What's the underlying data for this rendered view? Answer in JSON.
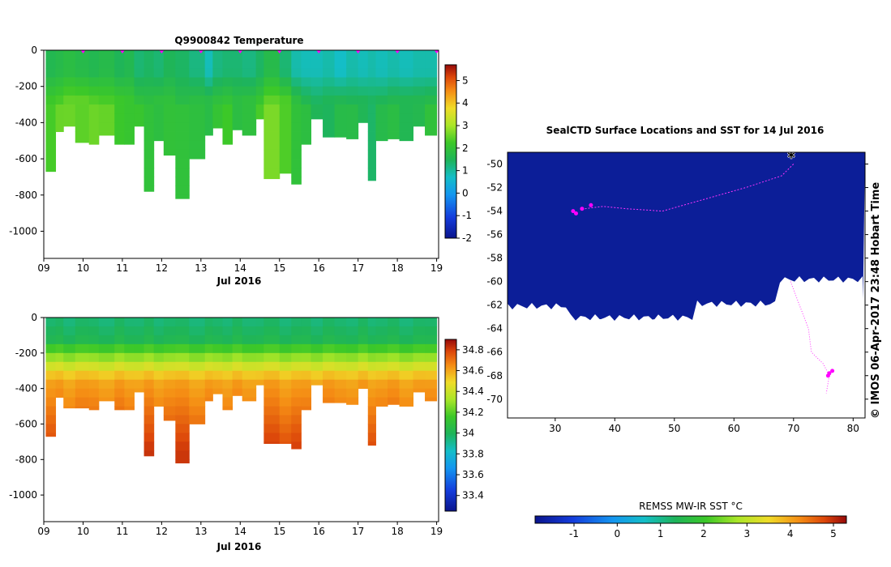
{
  "credit": "© IMOS 06-Apr-2017 23:48 Hobart Time",
  "chart_data": [
    {
      "type": "heatmap",
      "title": "Q9900842  Temperature",
      "xlabel": "Jul 2016",
      "ylabel": "",
      "x_ticks": [
        "09",
        "10",
        "11",
        "12",
        "13",
        "14",
        "15",
        "16",
        "17",
        "18",
        "19"
      ],
      "y_ticks": [
        "0",
        "-200",
        "-400",
        "-600",
        "-800",
        "-1000"
      ],
      "ylim": [
        -1150,
        0
      ],
      "xlim": [
        9.0,
        19.05
      ],
      "colorbar": {
        "min": -2,
        "max": 5.7,
        "ticks": [
          "-2",
          "-1",
          "0",
          "1",
          "2",
          "3",
          "4",
          "5"
        ]
      },
      "profile_markers_x": [
        10,
        11,
        12,
        13,
        14,
        15,
        16,
        17,
        18,
        19
      ],
      "profiles": {
        "x_start": [
          9.05,
          9.3,
          9.5,
          9.8,
          10.15,
          10.4,
          10.8,
          11.05,
          11.3,
          11.55,
          11.8,
          12.05,
          12.35,
          12.7,
          13.1,
          13.3,
          13.55,
          13.8,
          14.05,
          14.4,
          14.6,
          15.0,
          15.3,
          15.55,
          15.8,
          16.1,
          16.4,
          16.7,
          17.0,
          17.25,
          17.45,
          17.75,
          18.05,
          18.4,
          18.7
        ],
        "max_depth": [
          670,
          450,
          420,
          510,
          520,
          470,
          520,
          520,
          420,
          780,
          500,
          580,
          820,
          600,
          470,
          430,
          520,
          440,
          470,
          380,
          710,
          680,
          740,
          520,
          380,
          480,
          480,
          490,
          400,
          720,
          500,
          490,
          500,
          420,
          470
        ],
        "surface_temp": [
          1.6,
          1.7,
          1.8,
          1.7,
          1.6,
          1.7,
          1.5,
          1.6,
          1.3,
          1.4,
          1.3,
          1.5,
          1.4,
          1.2,
          0.8,
          1.2,
          1.3,
          1.3,
          1.2,
          1.4,
          1.7,
          1.3,
          0.9,
          0.8,
          0.8,
          0.9,
          0.7,
          0.9,
          0.8,
          0.9,
          0.8,
          0.9,
          0.8,
          0.9,
          0.9
        ],
        "deep_temp": [
          2.3,
          2.4,
          2.6,
          2.6,
          2.5,
          2.4,
          2.3,
          2.2,
          2.0,
          1.9,
          2.0,
          2.0,
          1.8,
          1.9,
          1.9,
          2.0,
          2.1,
          1.9,
          2.0,
          2.2,
          2.6,
          2.5,
          2.0,
          1.7,
          1.5,
          1.6,
          1.7,
          1.6,
          1.6,
          1.5,
          1.6,
          1.7,
          1.7,
          1.7,
          1.8
        ]
      }
    },
    {
      "type": "heatmap",
      "title": "",
      "xlabel": "Jul 2016",
      "ylabel": "",
      "x_ticks": [
        "09",
        "10",
        "11",
        "12",
        "13",
        "14",
        "15",
        "16",
        "17",
        "18",
        "19"
      ],
      "y_ticks": [
        "0",
        "-200",
        "-400",
        "-600",
        "-800",
        "-1000"
      ],
      "ylim": [
        -1150,
        0
      ],
      "xlim": [
        9.0,
        19.05
      ],
      "colorbar": {
        "min": 33.25,
        "max": 34.9,
        "ticks": [
          "33.4",
          "33.6",
          "33.8",
          "34",
          "34.2",
          "34.4",
          "34.6",
          "34.8"
        ]
      },
      "profiles": {
        "x_start": [
          9.05,
          9.3,
          9.5,
          9.8,
          10.15,
          10.4,
          10.8,
          11.05,
          11.3,
          11.55,
          11.8,
          12.05,
          12.35,
          12.7,
          13.1,
          13.3,
          13.55,
          13.8,
          14.05,
          14.4,
          14.6,
          15.0,
          15.3,
          15.55,
          15.8,
          16.1,
          16.4,
          16.7,
          17.0,
          17.25,
          17.45,
          17.75,
          18.05,
          18.4,
          18.7
        ],
        "max_depth": [
          670,
          450,
          510,
          510,
          520,
          470,
          520,
          520,
          420,
          780,
          500,
          580,
          820,
          600,
          470,
          430,
          520,
          440,
          470,
          380,
          710,
          710,
          740,
          520,
          380,
          480,
          480,
          490,
          400,
          720,
          500,
          490,
          500,
          420,
          470
        ]
      }
    },
    {
      "type": "map",
      "title": "SealCTD Surface Locations and SST for 14 Jul 2016",
      "x_ticks": [
        "30",
        "40",
        "50",
        "60",
        "70",
        "80"
      ],
      "y_ticks": [
        "-50",
        "-52",
        "-54",
        "-56",
        "-58",
        "-60",
        "-62",
        "-64",
        "-66",
        "-68",
        "-70"
      ],
      "xlim": [
        22,
        82
      ],
      "ylim": [
        -71.6,
        -49.0
      ],
      "colorbar_label": "REMSS MW-IR SST °C",
      "colorbar": {
        "min": -1.9,
        "max": 5.3,
        "ticks": [
          "-1",
          "0",
          "1",
          "2",
          "3",
          "4",
          "5"
        ]
      }
    }
  ]
}
